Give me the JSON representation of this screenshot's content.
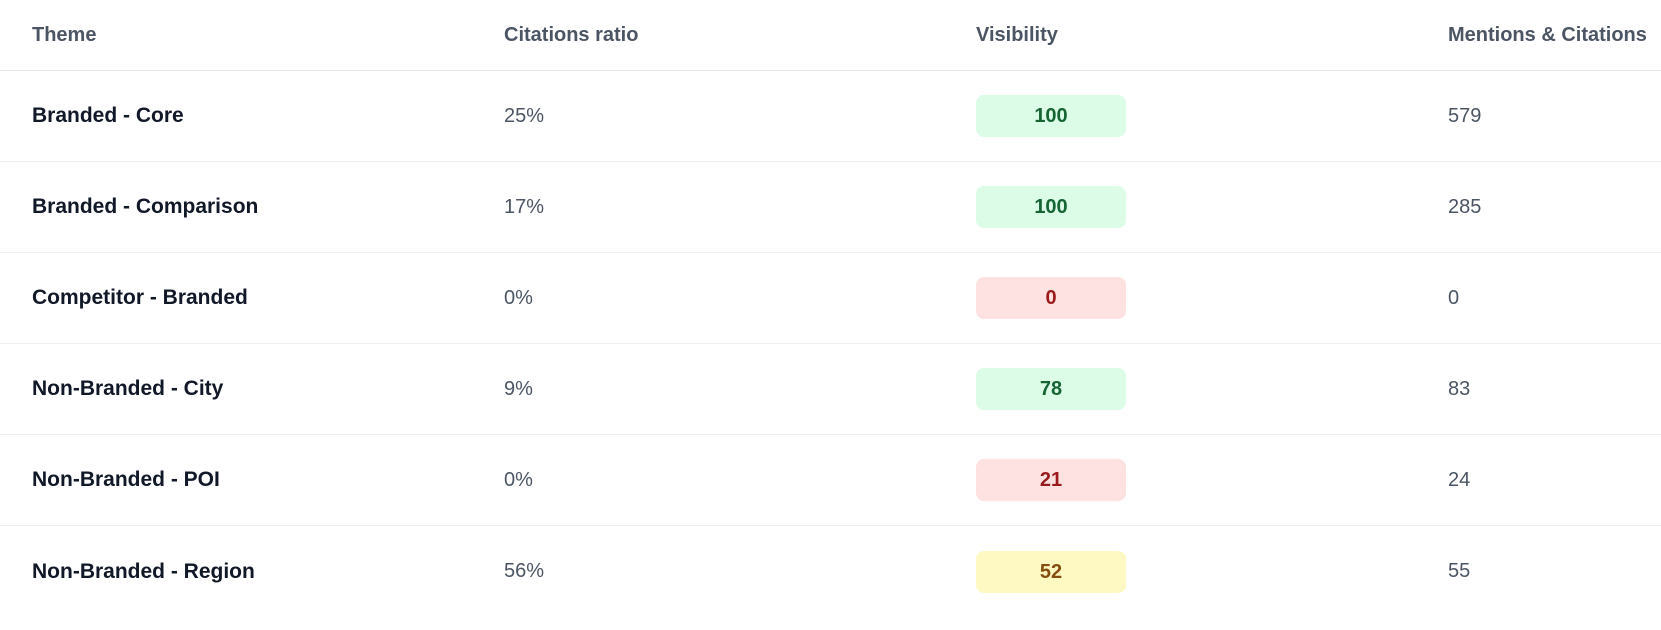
{
  "table": {
    "headers": {
      "theme": "Theme",
      "citations_ratio": "Citations ratio",
      "visibility": "Visibility",
      "mentions_citations": "Mentions & Citations"
    },
    "rows": [
      {
        "theme": "Branded - Core",
        "citations_ratio": "25%",
        "visibility": "100",
        "visibility_status": "green",
        "mentions_citations": "579"
      },
      {
        "theme": "Branded - Comparison",
        "citations_ratio": "17%",
        "visibility": "100",
        "visibility_status": "green",
        "mentions_citations": "285"
      },
      {
        "theme": "Competitor - Branded",
        "citations_ratio": "0%",
        "visibility": "0",
        "visibility_status": "red",
        "mentions_citations": "0"
      },
      {
        "theme": "Non-Branded - City",
        "citations_ratio": "9%",
        "visibility": "78",
        "visibility_status": "green",
        "mentions_citations": "83"
      },
      {
        "theme": "Non-Branded - POI",
        "citations_ratio": "0%",
        "visibility": "21",
        "visibility_status": "red",
        "mentions_citations": "24"
      },
      {
        "theme": "Non-Branded - Region",
        "citations_ratio": "56%",
        "visibility": "52",
        "visibility_status": "yellow",
        "mentions_citations": "55"
      }
    ]
  },
  "colors": {
    "visibility_high_bg": "#dcfce7",
    "visibility_high_text": "#166534",
    "visibility_low_bg": "#fee2e2",
    "visibility_low_text": "#991b1b",
    "visibility_mid_bg": "#fef9c3",
    "visibility_mid_text": "#854d0e"
  }
}
